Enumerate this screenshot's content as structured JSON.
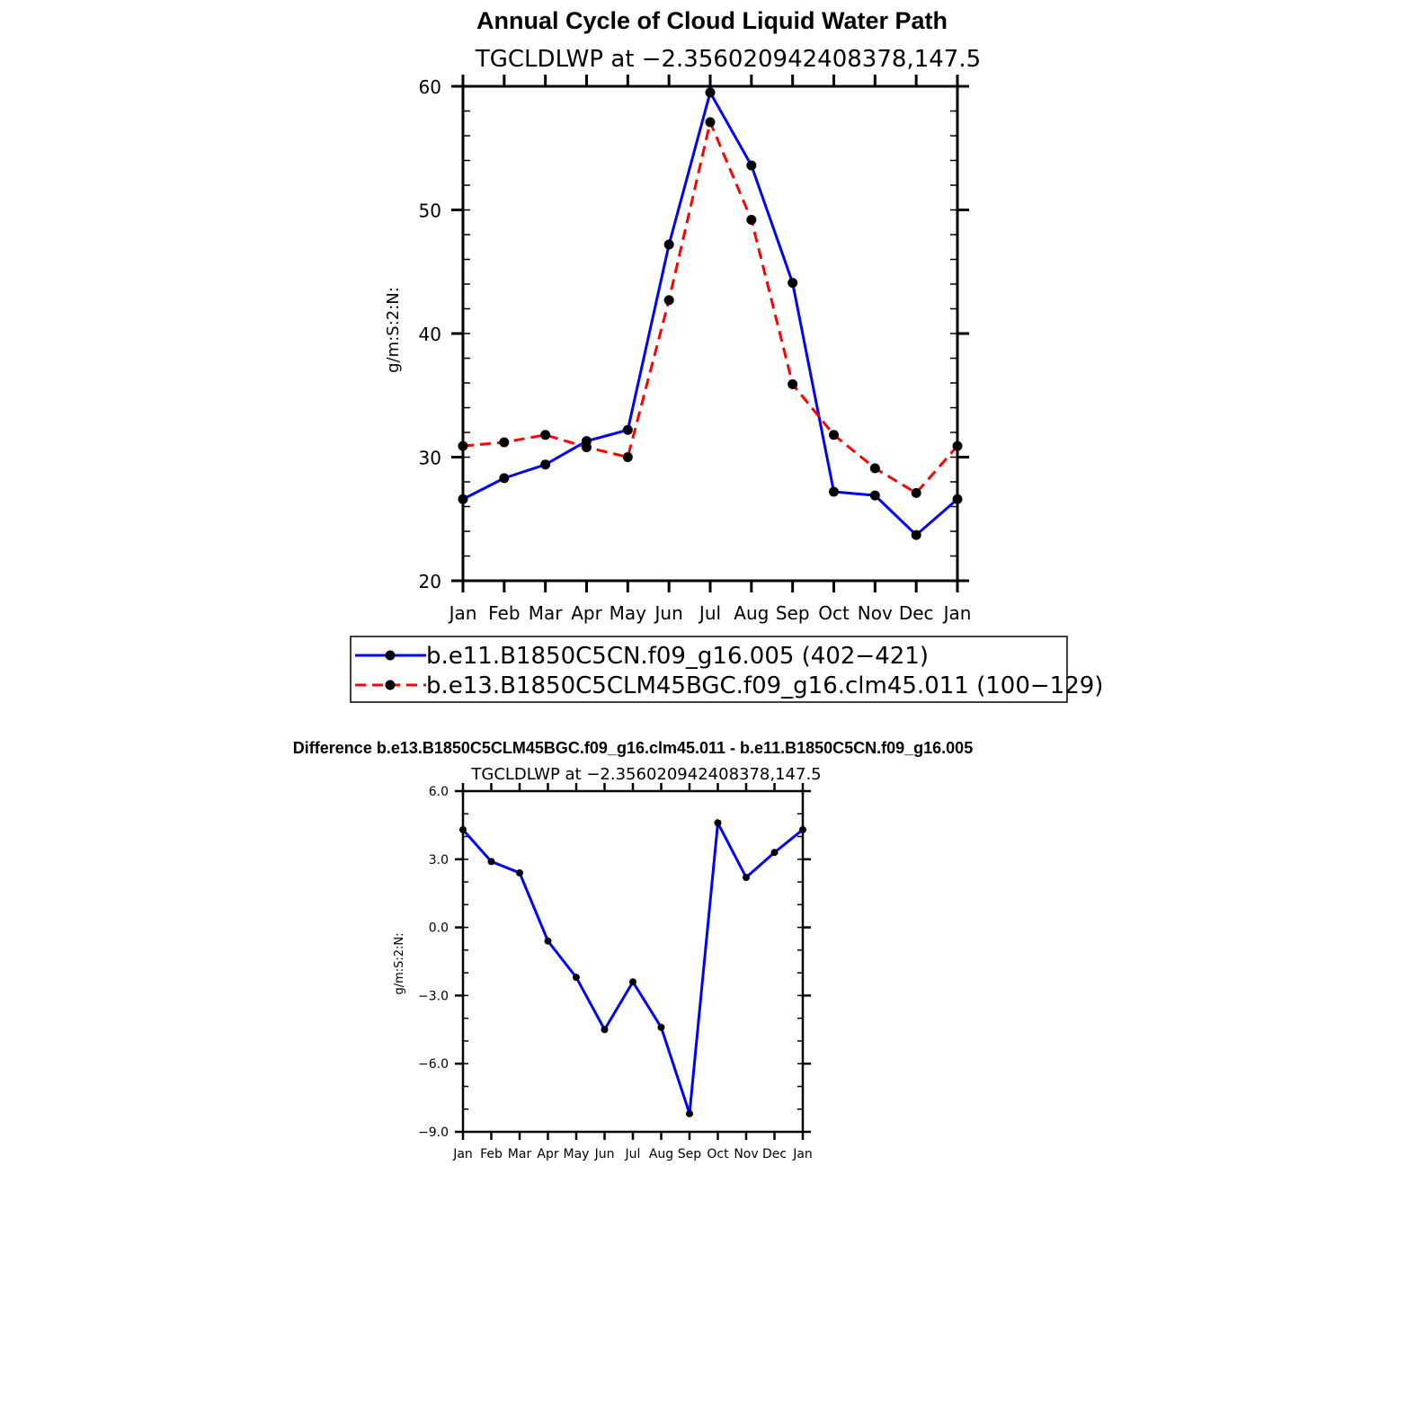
{
  "chart_data": [
    {
      "type": "line",
      "title": "Annual Cycle of Cloud Liquid Water Path",
      "subtitle": "TGCLDLWP at −2.356020942408378,147.5",
      "xlabel": "",
      "ylabel": "g/m:S:2:N:",
      "categories": [
        "Jan",
        "Feb",
        "Mar",
        "Apr",
        "May",
        "Jun",
        "Jul",
        "Aug",
        "Sep",
        "Oct",
        "Nov",
        "Dec",
        "Jan"
      ],
      "ylim": [
        20,
        60
      ],
      "yticks": [
        "20",
        "30",
        "40",
        "50",
        "60"
      ],
      "series": [
        {
          "name": "b.e11.B1850C5CN.f09_g16.005 (402−421)",
          "color": "#0000ff",
          "style": "solid",
          "values": [
            26.6,
            28.3,
            29.4,
            31.3,
            32.2,
            47.2,
            59.5,
            53.6,
            44.1,
            27.2,
            26.9,
            23.7,
            26.6
          ]
        },
        {
          "name": "b.e13.B1850C5CLM45BGC.f09_g16.clm45.011 (100−129)",
          "color": "#ff0000",
          "style": "dashed",
          "values": [
            30.9,
            31.2,
            31.8,
            30.8,
            30.0,
            42.7,
            57.1,
            49.2,
            35.9,
            31.8,
            29.1,
            27.1,
            30.9
          ]
        }
      ],
      "legend": "bottom"
    },
    {
      "type": "line",
      "title": "Difference b.e13.B1850C5CLM45BGC.f09_g16.clm45.011 - b.e11.B1850C5CN.f09_g16.005",
      "subtitle": "TGCLDLWP at −2.356020942408378,147.5",
      "xlabel": "",
      "ylabel": "g/m:S:2:N:",
      "categories": [
        "Jan",
        "Feb",
        "Mar",
        "Apr",
        "May",
        "Jun",
        "Jul",
        "Aug",
        "Sep",
        "Oct",
        "Nov",
        "Dec",
        "Jan"
      ],
      "ylim": [
        -9,
        6
      ],
      "yticks": [
        "−9.0",
        "−6.0",
        "−3.0",
        "0.0",
        "3.0",
        "6.0"
      ],
      "series": [
        {
          "name": "Difference",
          "color": "#0000ff",
          "style": "solid",
          "values": [
            4.3,
            2.9,
            2.4,
            -0.6,
            -2.2,
            -4.5,
            -2.4,
            -4.4,
            -8.2,
            4.6,
            2.2,
            3.3,
            4.3
          ]
        }
      ]
    }
  ]
}
